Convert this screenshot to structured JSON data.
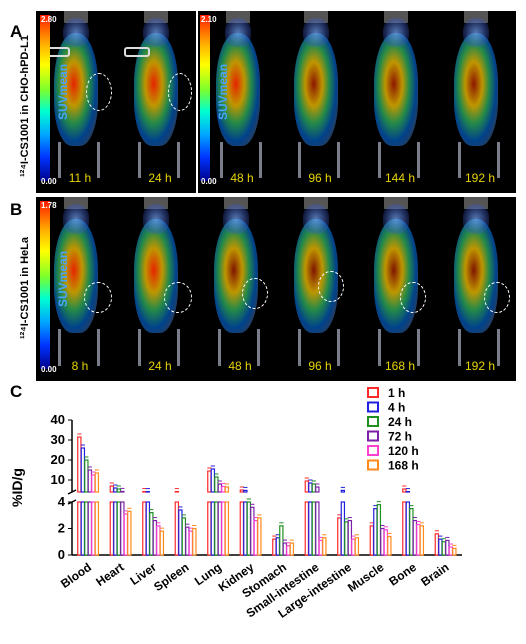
{
  "panels": {
    "A": {
      "letter": "A",
      "side_label": "¹²⁴I-CS1001 in CHO-hPD-L1",
      "colorbars": [
        {
          "max": "2.80",
          "min": "0.00",
          "label": "SUVmean"
        },
        {
          "max": "2.10",
          "min": "0.00",
          "label": "SUVmean"
        }
      ],
      "times": [
        "11 h",
        "24 h",
        "48 h",
        "96 h",
        "144 h",
        "192 h"
      ]
    },
    "B": {
      "letter": "B",
      "side_label": "¹²⁴I-CS1001 in HeLa",
      "colorbars": [
        {
          "max": "1.78",
          "min": "0.00",
          "label": "SUVmean"
        }
      ],
      "times": [
        "8 h",
        "24 h",
        "48 h",
        "96 h",
        "168 h",
        "192 h"
      ]
    },
    "C": {
      "letter": "C"
    }
  },
  "colors": {
    "1 h": "#ff2a2a",
    "4 h": "#1f1fe0",
    "24 h": "#1e8f1e",
    "72 h": "#7a1fa8",
    "120 h": "#ff3fd0",
    "168 h": "#ff8a1a"
  },
  "chart_data": {
    "type": "bar",
    "ylabel": "%ID/g",
    "broken_axis": true,
    "ylim_lower": [
      0,
      4
    ],
    "ylim_upper": [
      4,
      40
    ],
    "yticks_lower": [
      0,
      2,
      4
    ],
    "yticks_upper": [
      10,
      20,
      30,
      40
    ],
    "categories": [
      "Blood",
      "Heart",
      "Liver",
      "Spleen",
      "Lung",
      "Kidney",
      "Stomach",
      "Small-intestine",
      "Large-intestine",
      "Muscle",
      "Bone",
      "Brain"
    ],
    "series": [
      {
        "name": "1 h",
        "values": [
          31.5,
          7.0,
          4.2,
          4.2,
          14.5,
          5.0,
          1.2,
          9.5,
          2.8,
          2.2,
          5.5,
          1.6
        ]
      },
      {
        "name": "4 h",
        "values": [
          26.0,
          6.0,
          4.2,
          3.4,
          15.5,
          4.8,
          1.3,
          8.5,
          4.8,
          3.5,
          4.2,
          1.2
        ]
      },
      {
        "name": "24 h",
        "values": [
          20.0,
          5.5,
          3.2,
          2.8,
          11.5,
          4.0,
          2.2,
          8.0,
          2.5,
          3.8,
          3.5,
          1.0
        ]
      },
      {
        "name": "72 h",
        "values": [
          15.0,
          4.3,
          2.6,
          2.1,
          8.0,
          3.6,
          0.9,
          6.5,
          2.6,
          2.0,
          2.6,
          1.1
        ]
      },
      {
        "name": "120 h",
        "values": [
          12.5,
          3.1,
          2.2,
          1.8,
          6.8,
          2.6,
          0.7,
          1.1,
          1.2,
          1.9,
          2.3,
          0.6
        ]
      },
      {
        "name": "168 h",
        "values": [
          13.5,
          3.3,
          1.8,
          2.0,
          6.5,
          2.8,
          0.9,
          1.3,
          1.3,
          1.4,
          2.2,
          0.5
        ]
      }
    ]
  }
}
